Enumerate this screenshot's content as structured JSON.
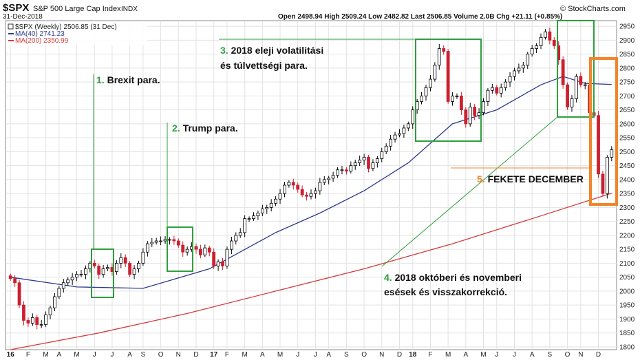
{
  "header": {
    "symbol": "$SPX",
    "name": "S&P 500 Large Cap Index",
    "exchange": "INDX",
    "date": "31-Dec-2018",
    "quote": "Open 2498.94  High 2509.24  Low 2482.82  Last 2506.85  Volume 2.0B  Chg +21.11 (+0.85%)",
    "source": "© StockCharts.com"
  },
  "legend": {
    "price": "$SPX (Weekly) 2506.85 (31 Dec)",
    "ma40": "MA(40) 2741.23",
    "ma200": "MA(200) 2350.99"
  },
  "annotations": [
    {
      "num": "1.",
      "text": "Brexit para."
    },
    {
      "num": "2.",
      "text": "Trump para."
    },
    {
      "num": "3.",
      "lines": [
        "2018 eleji volatilitási",
        "és túlvettségi para."
      ]
    },
    {
      "num": "4.",
      "lines": [
        "2018 októberi és novemberi",
        "esések és visszakorrekció."
      ]
    },
    {
      "num": "5.",
      "text": "FEKETE DECEMBER"
    }
  ],
  "colors": {
    "up": "#000000",
    "down": "#cc1f2f",
    "ma40": "#2e3a8c",
    "ma200": "#d63a3a",
    "green_note": "#2e9e3e",
    "orange_note": "#f0852b",
    "grid": "#e2e2e2"
  },
  "chart_data": {
    "type": "candlestick",
    "title": "$SPX S&P 500 Large Cap Index INDX",
    "xlabel": "",
    "ylabel": "",
    "ylim": [
      1790,
      2970
    ],
    "grid": true,
    "axis_side": "right",
    "x_tick_labels": [
      "16",
      "F",
      "M",
      "A",
      "M",
      "J",
      "J",
      "A",
      "S",
      "O",
      "N",
      "D",
      "17",
      "F",
      "M",
      "A",
      "M",
      "J",
      "J",
      "A",
      "S",
      "O",
      "N",
      "D",
      "18",
      "F",
      "M",
      "A",
      "M",
      "J",
      "J",
      "A",
      "S",
      "O",
      "N",
      "D"
    ],
    "y_ticks": [
      1800,
      1850,
      1900,
      1950,
      2000,
      2050,
      2100,
      2150,
      2200,
      2250,
      2300,
      2350,
      2400,
      2450,
      2500,
      2550,
      2600,
      2650,
      2700,
      2750,
      2800,
      2850,
      2900,
      2950
    ],
    "weekly_close": [
      2045,
      2030,
      1950,
      1895,
      1885,
      1905,
      1880,
      1880,
      1915,
      1940,
      1980,
      2010,
      2030,
      2040,
      2050,
      2060,
      2060,
      2080,
      2100,
      2090,
      2060,
      2080,
      2085,
      2070,
      2100,
      2120,
      2100,
      2060,
      2080,
      2100,
      2140,
      2170,
      2175,
      2180,
      2180,
      2185,
      2185,
      2180,
      2165,
      2140,
      2150,
      2160,
      2150,
      2130,
      2155,
      2140,
      2090,
      2105,
      2090,
      2150,
      2180,
      2200,
      2210,
      2260,
      2260,
      2270,
      2280,
      2295,
      2300,
      2315,
      2330,
      2350,
      2380,
      2390,
      2380,
      2365,
      2345,
      2340,
      2350,
      2360,
      2390,
      2400,
      2405,
      2415,
      2435,
      2435,
      2430,
      2450,
      2460,
      2470,
      2480,
      2440,
      2460,
      2475,
      2500,
      2520,
      2545,
      2560,
      2565,
      2585,
      2600,
      2650,
      2680,
      2700,
      2730,
      2760,
      2810,
      2870,
      2860,
      2680,
      2700,
      2700,
      2650,
      2600,
      2660,
      2630,
      2640,
      2680,
      2720,
      2730,
      2710,
      2730,
      2750,
      2770,
      2790,
      2800,
      2810,
      2850,
      2870,
      2880,
      2910,
      2930,
      2900,
      2880,
      2830,
      2740,
      2660,
      2690,
      2770,
      2740,
      2740,
      2640,
      2630,
      2420,
      2350,
      2480,
      2506.85
    ],
    "series": [
      {
        "name": "MA(40)",
        "last": 2741.23,
        "values": [
          [
            0,
            2050
          ],
          [
            15,
            2015
          ],
          [
            30,
            2010
          ],
          [
            45,
            2080
          ],
          [
            60,
            2210
          ],
          [
            70,
            2280
          ],
          [
            80,
            2360
          ],
          [
            90,
            2460
          ],
          [
            100,
            2600
          ],
          [
            110,
            2650
          ],
          [
            120,
            2740
          ],
          [
            125,
            2770
          ],
          [
            130,
            2745
          ],
          [
            136,
            2741.23
          ]
        ]
      },
      {
        "name": "MA(200)",
        "last": 2350.99,
        "values": [
          [
            0,
            1790
          ],
          [
            20,
            1850
          ],
          [
            40,
            1920
          ],
          [
            60,
            2000
          ],
          [
            80,
            2080
          ],
          [
            100,
            2170
          ],
          [
            120,
            2270
          ],
          [
            136,
            2350.99
          ]
        ]
      }
    ]
  }
}
